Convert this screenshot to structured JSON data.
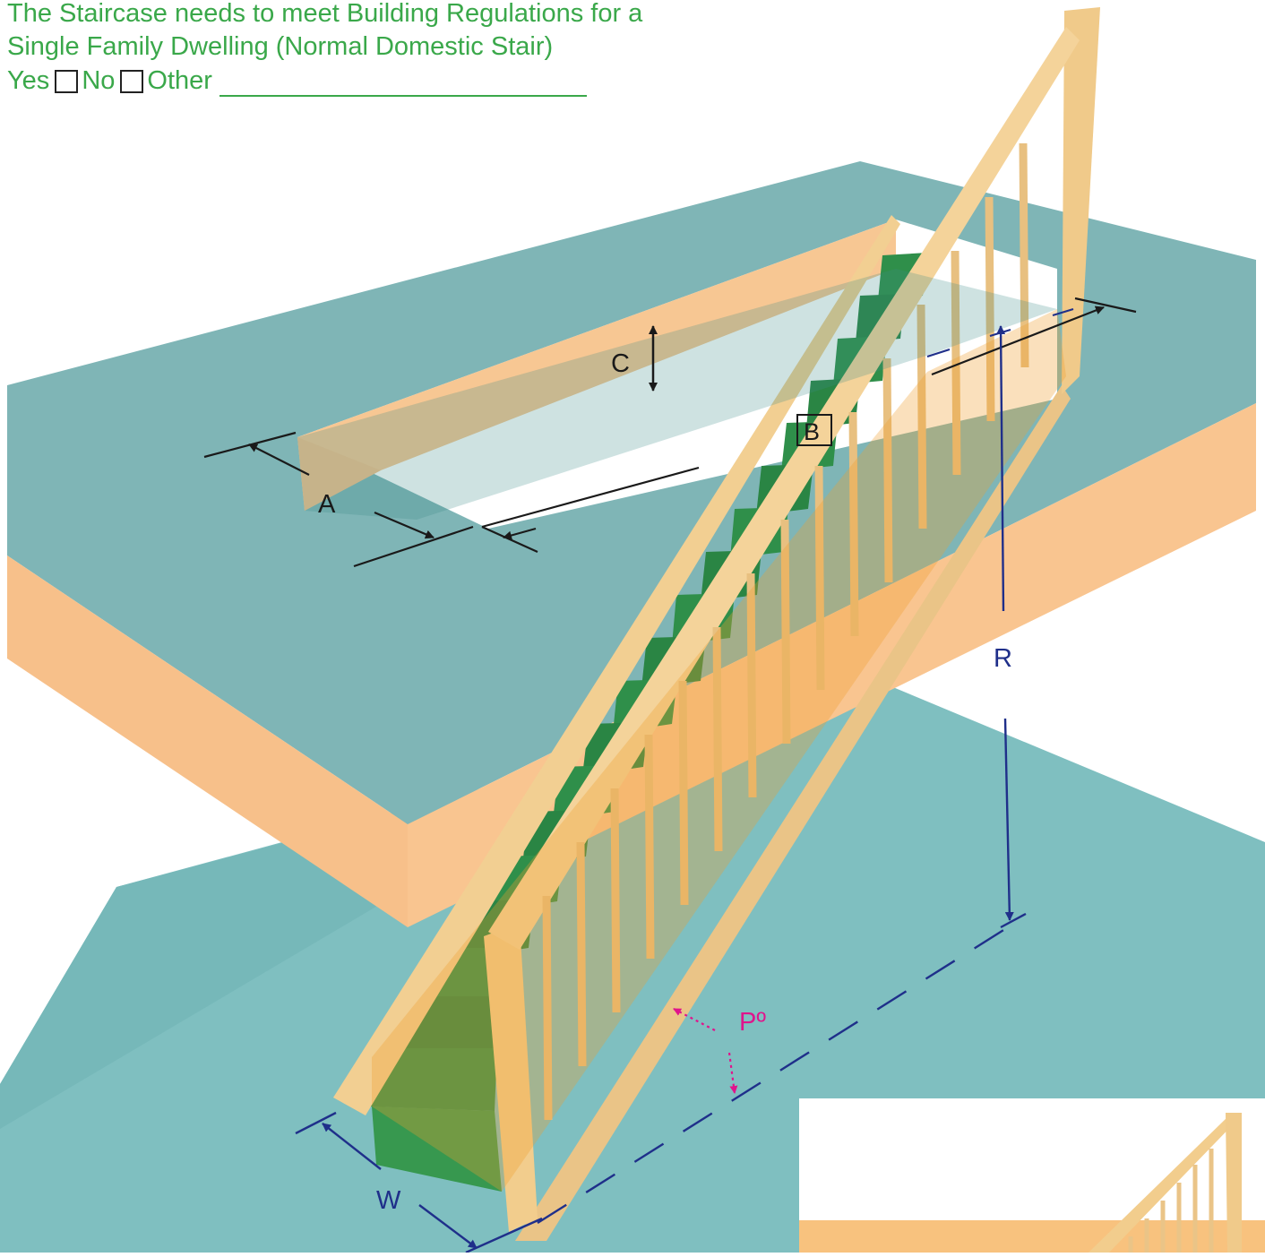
{
  "requirement": {
    "line1": "The Staircase needs to meet Building Regulations for a",
    "line2": "Single Family Dwelling (Normal Domestic Stair)",
    "yes_label": "Yes",
    "no_label": "No",
    "other_label": "Other"
  },
  "dimension_labels": {
    "a": "A",
    "b": "B",
    "c": "C",
    "r": "R",
    "w": "W",
    "p": "Pº"
  },
  "colors": {
    "header_text": "#3aa84a",
    "floor": "#7fbfc0",
    "timber": "#f7c793",
    "treads": "#2f8f4a",
    "dimension_black": "#1a1a1a",
    "dimension_blue": "#1f2f8a",
    "pitch_magenta": "#e0148c"
  }
}
